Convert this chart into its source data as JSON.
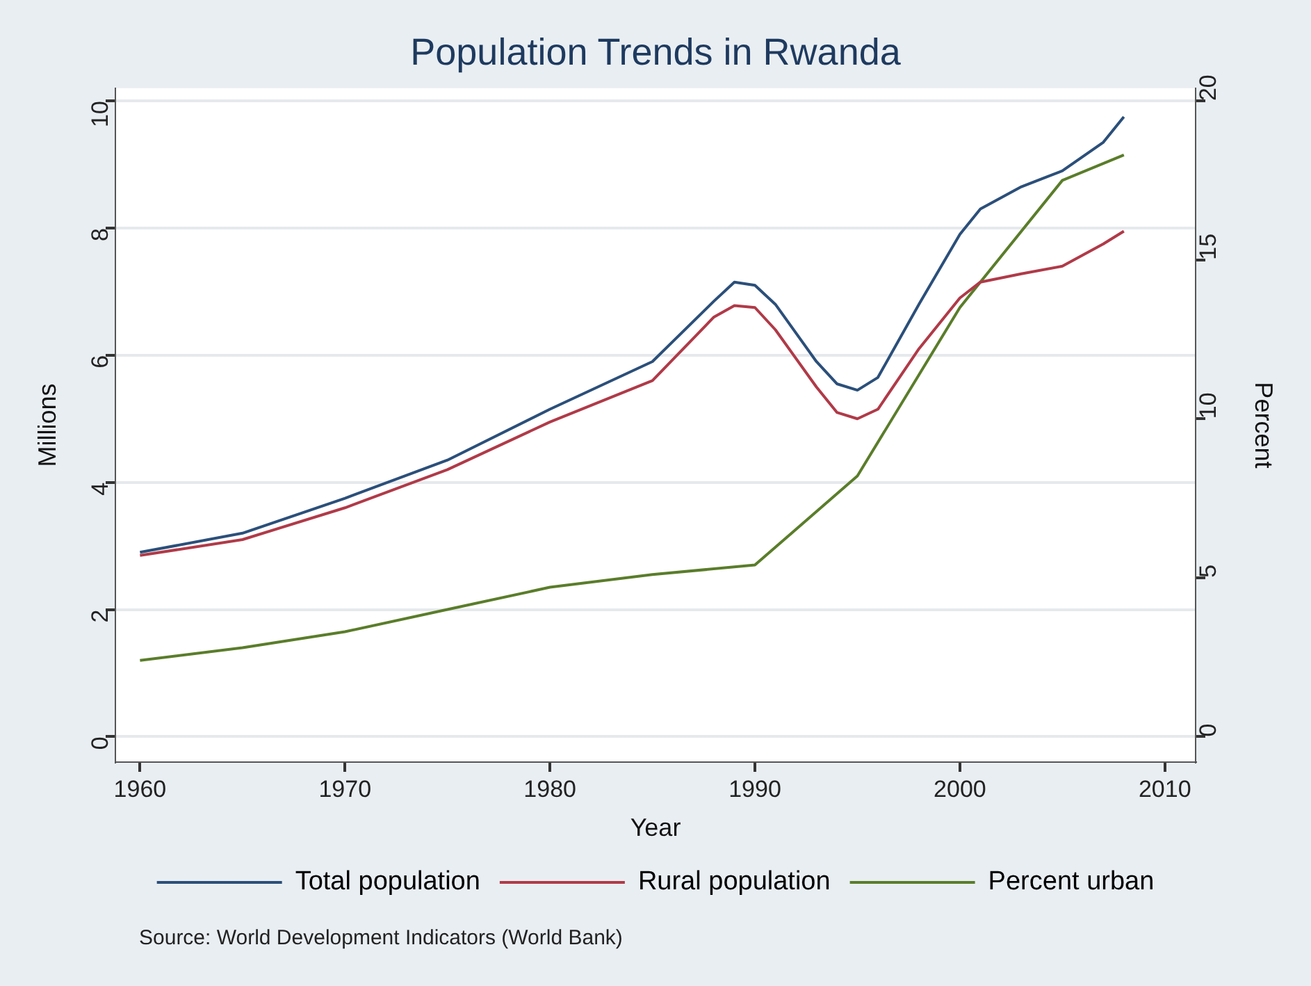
{
  "chart_data": {
    "type": "line",
    "title": "Population Trends in Rwanda",
    "xlabel": "Year",
    "ylabel": "Millions",
    "y2label": "Percent",
    "xlim": [
      1958.8,
      2011.5
    ],
    "xticks": [
      1960,
      1970,
      1980,
      1990,
      2000,
      2010
    ],
    "ylim": [
      -0.4,
      10.2
    ],
    "yticks": [
      0,
      2,
      4,
      6,
      8,
      10
    ],
    "y2lim": [
      -0.8,
      20.4
    ],
    "y2ticks": [
      0,
      5,
      10,
      15,
      20
    ],
    "grid": "y",
    "legend": "bottom",
    "marker": "none",
    "line_style": "solid",
    "annotations": [
      "Source: World Development Indicators (World Bank)"
    ],
    "series": [
      {
        "name": "Total population",
        "color": "#2b4f7a",
        "x": [
          1960,
          1965,
          1970,
          1975,
          1980,
          1985,
          1988,
          1989,
          1990,
          1991,
          1993,
          1994,
          1995,
          1996,
          1998,
          2000,
          2001,
          2003,
          2005,
          2007,
          2008
        ],
        "values": [
          2.9,
          3.2,
          3.75,
          4.35,
          5.15,
          5.9,
          6.85,
          7.15,
          7.1,
          6.8,
          5.9,
          5.55,
          5.45,
          5.65,
          6.8,
          7.9,
          8.3,
          8.65,
          8.9,
          9.35,
          9.75
        ]
      },
      {
        "name": "Rural population",
        "color": "#b03a48",
        "x": [
          1960,
          1965,
          1970,
          1975,
          1980,
          1985,
          1988,
          1989,
          1990,
          1991,
          1993,
          1994,
          1995,
          1996,
          1998,
          2000,
          2001,
          2003,
          2005,
          2007,
          2008
        ],
        "values": [
          2.85,
          3.1,
          3.6,
          4.2,
          4.95,
          5.6,
          6.6,
          6.78,
          6.75,
          6.4,
          5.5,
          5.1,
          5.0,
          5.15,
          6.1,
          6.9,
          7.15,
          7.28,
          7.4,
          7.75,
          7.95
        ]
      },
      {
        "name": "Percent urban",
        "color": "#5a7d2a",
        "axis": "y2",
        "x": [
          1960,
          1965,
          1970,
          1975,
          1980,
          1985,
          1990,
          1995,
          2000,
          2005,
          2008
        ],
        "values": [
          2.4,
          2.8,
          3.3,
          4.0,
          4.7,
          5.1,
          5.4,
          8.2,
          13.5,
          17.5,
          18.3
        ]
      }
    ]
  }
}
